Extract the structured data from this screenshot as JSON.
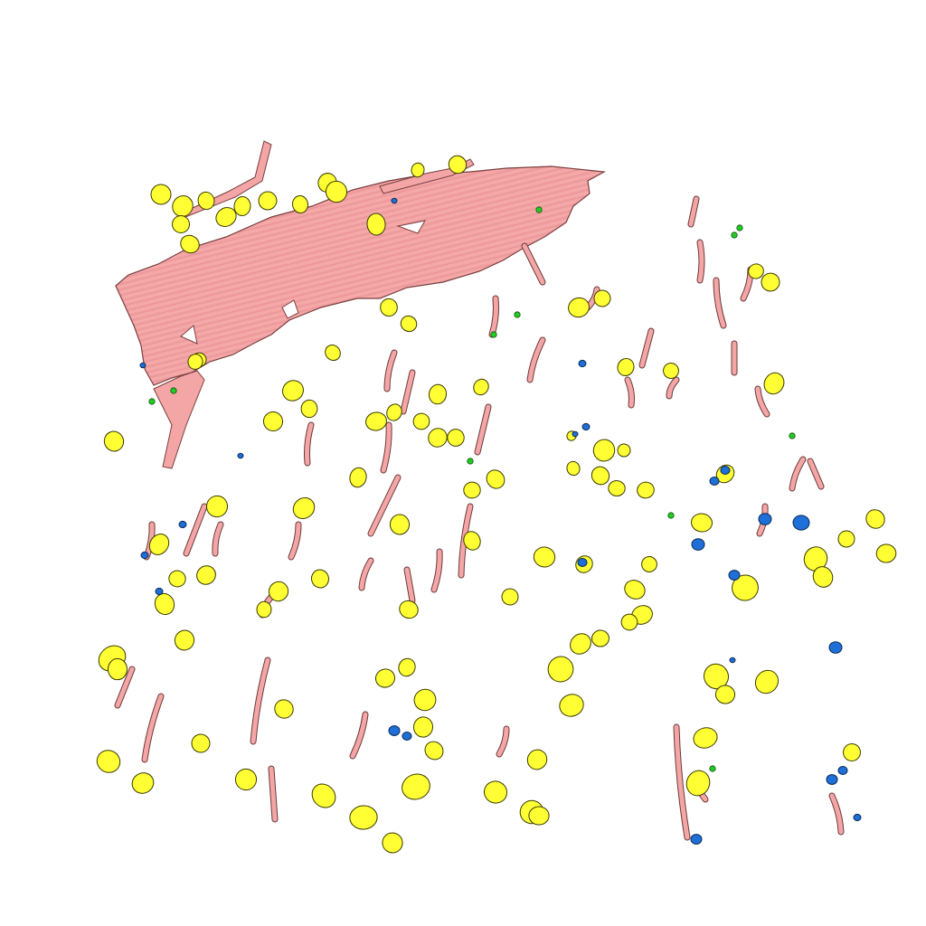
{
  "scene": {
    "kind": "3d-rendered-segmentation",
    "background": "#ffffff",
    "colors": {
      "fiber": "#f4a6a6",
      "fiber_outline": "#6b3a3a",
      "cell": "#ffff33",
      "cell_outline": "#444400",
      "nucleus": "#1f6fd8",
      "marker": "#22cc22"
    },
    "classes": [
      {
        "name": "muscle-fiber-bundle",
        "icon": "pink-sheet"
      },
      {
        "name": "vessel-fragments",
        "icon": "pink-strand"
      },
      {
        "name": "yellow-cells",
        "icon": "yellow-blob"
      },
      {
        "name": "blue-nuclei",
        "icon": "blue-blob"
      },
      {
        "name": "green-markers",
        "icon": "green-dot"
      }
    ]
  }
}
